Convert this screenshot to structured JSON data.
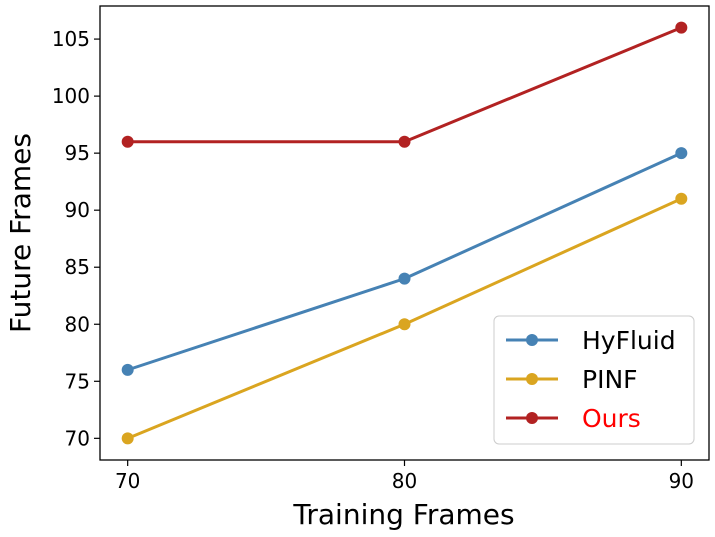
{
  "chart_data": {
    "type": "line",
    "title": "",
    "xlabel": "Training Frames",
    "ylabel": "Future Frames",
    "x": [
      70,
      80,
      90
    ],
    "xticks": [
      70,
      80,
      90
    ],
    "xtick_labels": [
      "70",
      "80",
      "90"
    ],
    "yticks": [
      70,
      75,
      80,
      85,
      90,
      95,
      100,
      105
    ],
    "ytick_labels": [
      "70",
      "75",
      "80",
      "85",
      "90",
      "95",
      "100",
      "105"
    ],
    "xlim": [
      69,
      91
    ],
    "ylim": [
      68.1,
      107.9
    ],
    "grid": false,
    "legend_position": "lower-right",
    "series": [
      {
        "name": "HyFluid",
        "values": [
          76,
          84,
          95
        ],
        "color": "#4682B4",
        "label_color": "#000000"
      },
      {
        "name": "PINF",
        "values": [
          70,
          80,
          91
        ],
        "color": "#DAA520",
        "label_color": "#000000"
      },
      {
        "name": "Ours",
        "values": [
          96,
          96,
          106
        ],
        "color": "#B22222",
        "label_color": "#FF0000"
      }
    ]
  }
}
